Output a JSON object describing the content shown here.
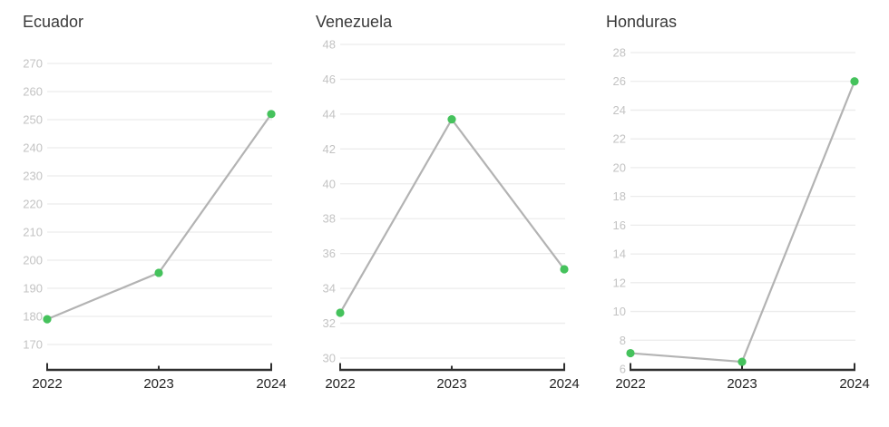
{
  "colors": {
    "background": "#ffffff",
    "point": "#45c25c",
    "line": "#b3b3b3",
    "grid": "#ececec",
    "tick_label": "#c3c3c3",
    "axis": "#2f2f2f",
    "title_text": "#3a3a3a",
    "x_label_text": "#222222"
  },
  "chart_data": [
    {
      "type": "line",
      "title": "Ecuador",
      "x": [
        "2022",
        "2023",
        "2024"
      ],
      "values": [
        179,
        195.5,
        252
      ],
      "y_ticks": [
        270,
        260,
        250,
        240,
        230,
        220,
        210,
        200,
        190,
        180,
        170
      ],
      "ylim": [
        170,
        270
      ],
      "xlabel": "",
      "ylabel": "",
      "grid": true,
      "legend": "none"
    },
    {
      "type": "line",
      "title": "Venezuela",
      "x": [
        "2022",
        "2023",
        "2024"
      ],
      "values": [
        32.6,
        43.7,
        35.1
      ],
      "y_ticks": [
        48,
        46,
        44,
        42,
        40,
        38,
        36,
        34,
        32,
        30
      ],
      "ylim": [
        30,
        48
      ],
      "xlabel": "",
      "ylabel": "",
      "grid": true,
      "legend": "none"
    },
    {
      "type": "line",
      "title": "Honduras",
      "x": [
        "2022",
        "2023",
        "2024"
      ],
      "values": [
        7.1,
        6.5,
        26
      ],
      "y_ticks": [
        28,
        26,
        24,
        22,
        20,
        18,
        16,
        14,
        12,
        10,
        8,
        6
      ],
      "ylim": [
        6,
        28
      ],
      "xlabel": "",
      "ylabel": "",
      "grid": true,
      "legend": "none"
    }
  ]
}
